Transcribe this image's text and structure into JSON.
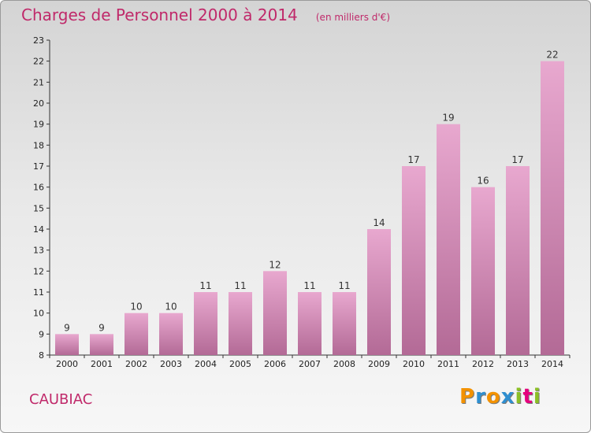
{
  "title": "Charges de Personnel 2000 à 2014",
  "unit_note": "(en milliers d'€)",
  "town": "CAUBIAC",
  "logo": {
    "text": "Proxiti",
    "letters": [
      "P",
      "r",
      "o",
      "x",
      "i",
      "t",
      "i"
    ],
    "colors": [
      "#f39200",
      "#2f8fd0",
      "#f39200",
      "#2f8fd0",
      "#8cbf26",
      "#e5007d",
      "#8cbf26"
    ]
  },
  "colors": {
    "accent": "#c0296a",
    "bar_top": "#e8a8cf",
    "bar_bottom": "#b36a96",
    "axis": "#333333",
    "grid": "#9a9a9a"
  },
  "chart_data": {
    "type": "bar",
    "title": "Charges de Personnel 2000 à 2014",
    "xlabel": "",
    "ylabel": "",
    "categories": [
      "2000",
      "2001",
      "2002",
      "2003",
      "2004",
      "2005",
      "2006",
      "2007",
      "2008",
      "2009",
      "2010",
      "2011",
      "2012",
      "2013",
      "2014"
    ],
    "values": [
      9,
      9,
      10,
      10,
      11,
      11,
      12,
      11,
      11,
      14,
      17,
      19,
      16,
      17,
      22
    ],
    "data_labels": [
      "9",
      "9",
      "10",
      "10",
      "11",
      "11",
      "12",
      "11",
      "11",
      "14",
      "17",
      "19",
      "16",
      "17",
      "22"
    ],
    "ylim": [
      8,
      23
    ],
    "yticks": [
      8,
      9,
      10,
      11,
      12,
      13,
      14,
      15,
      16,
      17,
      18,
      19,
      20,
      21,
      22,
      23
    ],
    "grid": false,
    "legend": "none"
  }
}
